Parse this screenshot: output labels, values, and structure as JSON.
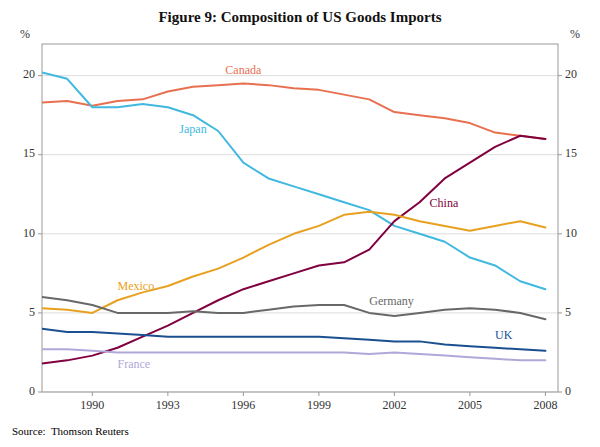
{
  "chart_data": {
    "type": "line",
    "title": "Figure 9: Composition of US Goods Imports",
    "source": "Source:  Thomson Reuters",
    "ylabel": "%",
    "y2label": "%",
    "x": [
      1988,
      1989,
      1990,
      1991,
      1992,
      1993,
      1994,
      1995,
      1996,
      1997,
      1998,
      1999,
      2000,
      2001,
      2002,
      2003,
      2004,
      2005,
      2006,
      2007,
      2008
    ],
    "xlim": [
      1988.0,
      2008.5
    ],
    "xticks": [
      1990,
      1993,
      1996,
      1999,
      2002,
      2005,
      2008
    ],
    "ylim": [
      0,
      22
    ],
    "yticks": [
      0,
      5,
      10,
      15,
      20
    ],
    "y2lim": [
      0,
      22
    ],
    "y2ticks": [
      0,
      5,
      10,
      15,
      20
    ],
    "grid": true,
    "series": [
      {
        "name": "Canada",
        "color": "#e87050",
        "values": [
          18.3,
          18.4,
          18.1,
          18.4,
          18.5,
          19.0,
          19.3,
          19.4,
          19.5,
          19.4,
          19.2,
          19.1,
          18.8,
          18.5,
          17.7,
          17.5,
          17.3,
          17.0,
          16.4,
          16.2,
          16.0
        ]
      },
      {
        "name": "Japan",
        "color": "#40b8e0",
        "values": [
          20.2,
          19.8,
          18.0,
          18.0,
          18.2,
          18.0,
          17.5,
          16.5,
          14.5,
          13.5,
          13.0,
          12.5,
          12.0,
          11.5,
          10.5,
          10.0,
          9.5,
          8.5,
          8.0,
          7.0,
          6.5
        ]
      },
      {
        "name": "China",
        "color": "#800040",
        "values": [
          1.8,
          2.0,
          2.3,
          2.8,
          3.5,
          4.2,
          5.0,
          5.8,
          6.5,
          7.0,
          7.5,
          8.0,
          8.2,
          9.0,
          10.8,
          12.0,
          13.5,
          14.5,
          15.5,
          16.2,
          16.0
        ]
      },
      {
        "name": "Mexico",
        "color": "#e8a020",
        "values": [
          5.3,
          5.2,
          5.0,
          5.8,
          6.3,
          6.7,
          7.3,
          7.8,
          8.5,
          9.3,
          10.0,
          10.5,
          11.2,
          11.4,
          11.2,
          10.8,
          10.5,
          10.2,
          10.5,
          10.8,
          10.4
        ]
      },
      {
        "name": "Germany",
        "color": "#686868",
        "values": [
          6.0,
          5.8,
          5.5,
          5.0,
          5.0,
          5.0,
          5.1,
          5.0,
          5.0,
          5.2,
          5.4,
          5.5,
          5.5,
          5.0,
          4.8,
          5.0,
          5.2,
          5.3,
          5.2,
          5.0,
          4.6
        ]
      },
      {
        "name": "UK",
        "color": "#1a5090",
        "values": [
          4.0,
          3.8,
          3.8,
          3.7,
          3.6,
          3.5,
          3.5,
          3.5,
          3.5,
          3.5,
          3.5,
          3.5,
          3.4,
          3.3,
          3.2,
          3.2,
          3.0,
          2.9,
          2.8,
          2.7,
          2.6
        ]
      },
      {
        "name": "France",
        "color": "#b0a8d8",
        "values": [
          2.7,
          2.7,
          2.6,
          2.5,
          2.5,
          2.5,
          2.5,
          2.5,
          2.5,
          2.5,
          2.5,
          2.5,
          2.5,
          2.4,
          2.5,
          2.4,
          2.3,
          2.2,
          2.1,
          2.0,
          2.0
        ]
      }
    ]
  }
}
